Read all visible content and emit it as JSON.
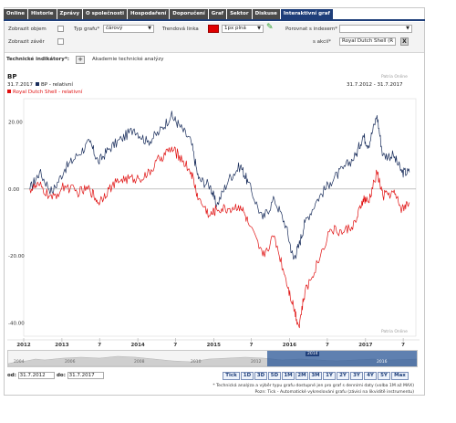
{
  "tabs": [
    "Online",
    "Historie",
    "Zprávy",
    "O společnosti",
    "Hospodaření",
    "Doporučení",
    "Graf",
    "Sektor",
    "Diskuse",
    "Interaktivní graf"
  ],
  "active_tab": "Interaktivní graf",
  "controls": {
    "show_volume_label": "Zobrazit objem",
    "show_close_label": "Zobrazit závěr",
    "chart_type_label": "Typ grafu*",
    "chart_type_value": "čárový",
    "trend_line_label": "Trendová linka",
    "line_style_value": "1px plná",
    "compare_index_label": "Porovnat s indexem*",
    "compare_index_value": "",
    "stock_label": "s akcií*",
    "stock_value": "Royal Dutch Shell (R",
    "remove_button": "X"
  },
  "tech": {
    "label": "Technické indikátory*:",
    "add_button": "+",
    "academy_link": "Akademie technické analýzy"
  },
  "chart": {
    "title": "BP",
    "source_top": "Patria Online",
    "source_bottom": "Patria Online",
    "date_label": "31.7.2017",
    "range_label": "31.7.2012 - 31.7.2017"
  },
  "navigator": {
    "labels": [
      "2004",
      "2006",
      "2008",
      "2010",
      "2012",
      "2014",
      "2016"
    ],
    "highlight_label": "2014"
  },
  "dates": {
    "from_label": "od:",
    "from_value": "31.7.2012",
    "to_label": "do:",
    "to_value": "31.7.2017"
  },
  "range_buttons": [
    "Tick",
    "1D",
    "3D",
    "5D",
    "1M",
    "2M",
    "3M",
    "1Y",
    "2Y",
    "3Y",
    "4Y",
    "5Y",
    "Max"
  ],
  "notes": {
    "line1": "* Technická analýza a výběr typu grafu dostupné jen pro graf s denními daty (volba 1M až MAX)",
    "line2": "Pozn: Tick - Automatické vykreslování grafu (závisí na likviditě instrumentu)"
  },
  "colors": {
    "bp_series": "#1a2e5c",
    "rds_series": "#e01010",
    "tab_active": "#1f3f7a",
    "tab_inactive": "#4a4a4a"
  },
  "chart_data": {
    "type": "line",
    "title": "BP",
    "series": [
      {
        "name": "BP - relativní",
        "points": [
          [
            "2012-07-31",
            0.0
          ],
          [
            "2012-09-15",
            5.0
          ],
          [
            "2012-11-15",
            -1.0
          ],
          [
            "2013-01-15",
            6.0
          ],
          [
            "2013-03-15",
            10.0
          ],
          [
            "2013-05-15",
            14.0
          ],
          [
            "2013-06-25",
            8.0
          ],
          [
            "2013-08-15",
            12.0
          ],
          [
            "2013-10-15",
            15.0
          ],
          [
            "2013-12-15",
            18.0
          ],
          [
            "2014-02-15",
            14.0
          ],
          [
            "2014-04-15",
            17.0
          ],
          [
            "2014-06-10",
            22.0
          ],
          [
            "2014-07-20",
            19.0
          ],
          [
            "2014-09-15",
            14.0
          ],
          [
            "2014-10-20",
            3.0
          ],
          [
            "2014-12-15",
            1.0
          ],
          [
            "2015-01-15",
            -5.0
          ],
          [
            "2015-03-15",
            3.0
          ],
          [
            "2015-05-10",
            7.0
          ],
          [
            "2015-06-15",
            2.0
          ],
          [
            "2015-08-25",
            -9.0
          ],
          [
            "2015-10-20",
            -3.0
          ],
          [
            "2015-12-15",
            -11.0
          ],
          [
            "2016-01-20",
            -21.0
          ],
          [
            "2016-02-15",
            -17.0
          ],
          [
            "2016-03-15",
            -10.0
          ],
          [
            "2016-05-15",
            -3.0
          ],
          [
            "2016-07-15",
            2.0
          ],
          [
            "2016-09-15",
            6.0
          ],
          [
            "2016-11-15",
            10.0
          ],
          [
            "2016-12-20",
            16.0
          ],
          [
            "2017-01-15",
            13.0
          ],
          [
            "2017-02-25",
            22.0
          ],
          [
            "2017-03-25",
            10.0
          ],
          [
            "2017-05-15",
            10.0
          ],
          [
            "2017-06-25",
            5.0
          ],
          [
            "2017-07-31",
            5.0
          ]
        ]
      },
      {
        "name": "Royal Dutch Shell - relativní",
        "points": [
          [
            "2012-07-31",
            0.0
          ],
          [
            "2012-09-15",
            1.0
          ],
          [
            "2012-11-15",
            -3.0
          ],
          [
            "2013-01-15",
            1.0
          ],
          [
            "2013-03-15",
            -1.0
          ],
          [
            "2013-05-15",
            0.0
          ],
          [
            "2013-06-25",
            -4.0
          ],
          [
            "2013-08-15",
            0.0
          ],
          [
            "2013-10-15",
            3.0
          ],
          [
            "2013-12-15",
            3.0
          ],
          [
            "2014-02-15",
            4.0
          ],
          [
            "2014-04-15",
            9.0
          ],
          [
            "2014-06-10",
            12.0
          ],
          [
            "2014-07-20",
            10.0
          ],
          [
            "2014-09-15",
            5.0
          ],
          [
            "2014-10-20",
            -3.0
          ],
          [
            "2014-12-15",
            -8.0
          ],
          [
            "2015-01-15",
            -6.0
          ],
          [
            "2015-03-15",
            -6.0
          ],
          [
            "2015-05-10",
            -5.0
          ],
          [
            "2015-06-15",
            -10.0
          ],
          [
            "2015-08-25",
            -20.0
          ],
          [
            "2015-10-20",
            -14.0
          ],
          [
            "2015-12-15",
            -27.0
          ],
          [
            "2016-01-20",
            -35.0
          ],
          [
            "2016-02-15",
            -41.0
          ],
          [
            "2016-03-15",
            -31.0
          ],
          [
            "2016-05-15",
            -22.0
          ],
          [
            "2016-07-15",
            -12.0
          ],
          [
            "2016-09-15",
            -13.0
          ],
          [
            "2016-11-15",
            -10.0
          ],
          [
            "2016-12-20",
            -3.0
          ],
          [
            "2017-01-15",
            -4.0
          ],
          [
            "2017-02-25",
            5.0
          ],
          [
            "2017-03-25",
            -2.0
          ],
          [
            "2017-05-15",
            -1.0
          ],
          [
            "2017-06-25",
            -6.0
          ],
          [
            "2017-07-31",
            -4.0
          ]
        ]
      }
    ],
    "y_ticks": [
      "20.00",
      "0.00",
      "-20.00",
      "-40.00"
    ],
    "y_tick_values": [
      20,
      0,
      -20,
      -40
    ],
    "ylim": [
      -44,
      27
    ],
    "xlim": [
      "2012-07-01",
      "2017-08-31"
    ],
    "x_ticks": [
      {
        "date": "2012-07-01",
        "label": "2012"
      },
      {
        "date": "2013-01-01",
        "label": "2013"
      },
      {
        "date": "2013-07-01",
        "label": "7"
      },
      {
        "date": "2014-01-01",
        "label": "2014"
      },
      {
        "date": "2014-07-01",
        "label": "7"
      },
      {
        "date": "2015-01-01",
        "label": "2015"
      },
      {
        "date": "2015-07-01",
        "label": "7"
      },
      {
        "date": "2016-01-01",
        "label": "2016"
      },
      {
        "date": "2016-07-01",
        "label": "7"
      },
      {
        "date": "2017-01-01",
        "label": "2017"
      },
      {
        "date": "2017-07-01",
        "label": "7"
      }
    ],
    "grid": "horizontal zero line only",
    "legend": "top-left"
  }
}
